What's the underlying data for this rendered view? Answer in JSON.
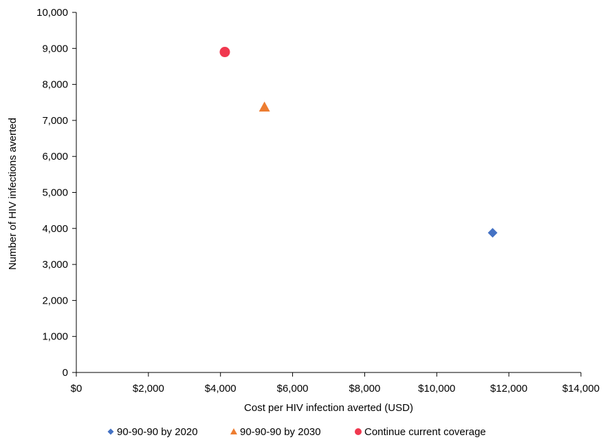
{
  "chart_data": {
    "type": "scatter",
    "xlabel": "Cost per HIV infection averted (USD)",
    "ylabel": "Number of HIV infections averted",
    "xlim": [
      0,
      14000
    ],
    "ylim": [
      0,
      10000
    ],
    "x_ticks": [
      0,
      2000,
      4000,
      6000,
      8000,
      10000,
      12000,
      14000
    ],
    "x_tick_labels": [
      "$0",
      "$2,000",
      "$4,000",
      "$6,000",
      "$8,000",
      "$10,000",
      "$12,000",
      "$14,000"
    ],
    "y_ticks": [
      0,
      1000,
      2000,
      3000,
      4000,
      5000,
      6000,
      7000,
      8000,
      9000,
      10000
    ],
    "y_tick_labels": [
      "0",
      "1,000",
      "2,000",
      "3,000",
      "4,000",
      "5,000",
      "6,000",
      "7,000",
      "8,000",
      "9,000",
      "10,000"
    ],
    "grid": false,
    "legend_position": "bottom",
    "series": [
      {
        "name": "90-90-90 by 2020",
        "marker": "diamond",
        "color": "#4472C4",
        "points": [
          {
            "x": 11550,
            "y": 3880
          }
        ]
      },
      {
        "name": "90-90-90 by 2030",
        "marker": "triangle",
        "color": "#ED7D31",
        "points": [
          {
            "x": 5220,
            "y": 7370
          }
        ]
      },
      {
        "name": "Continue current coverage",
        "marker": "circle",
        "color": "#F0384F",
        "points": [
          {
            "x": 4120,
            "y": 8900
          }
        ]
      }
    ]
  }
}
